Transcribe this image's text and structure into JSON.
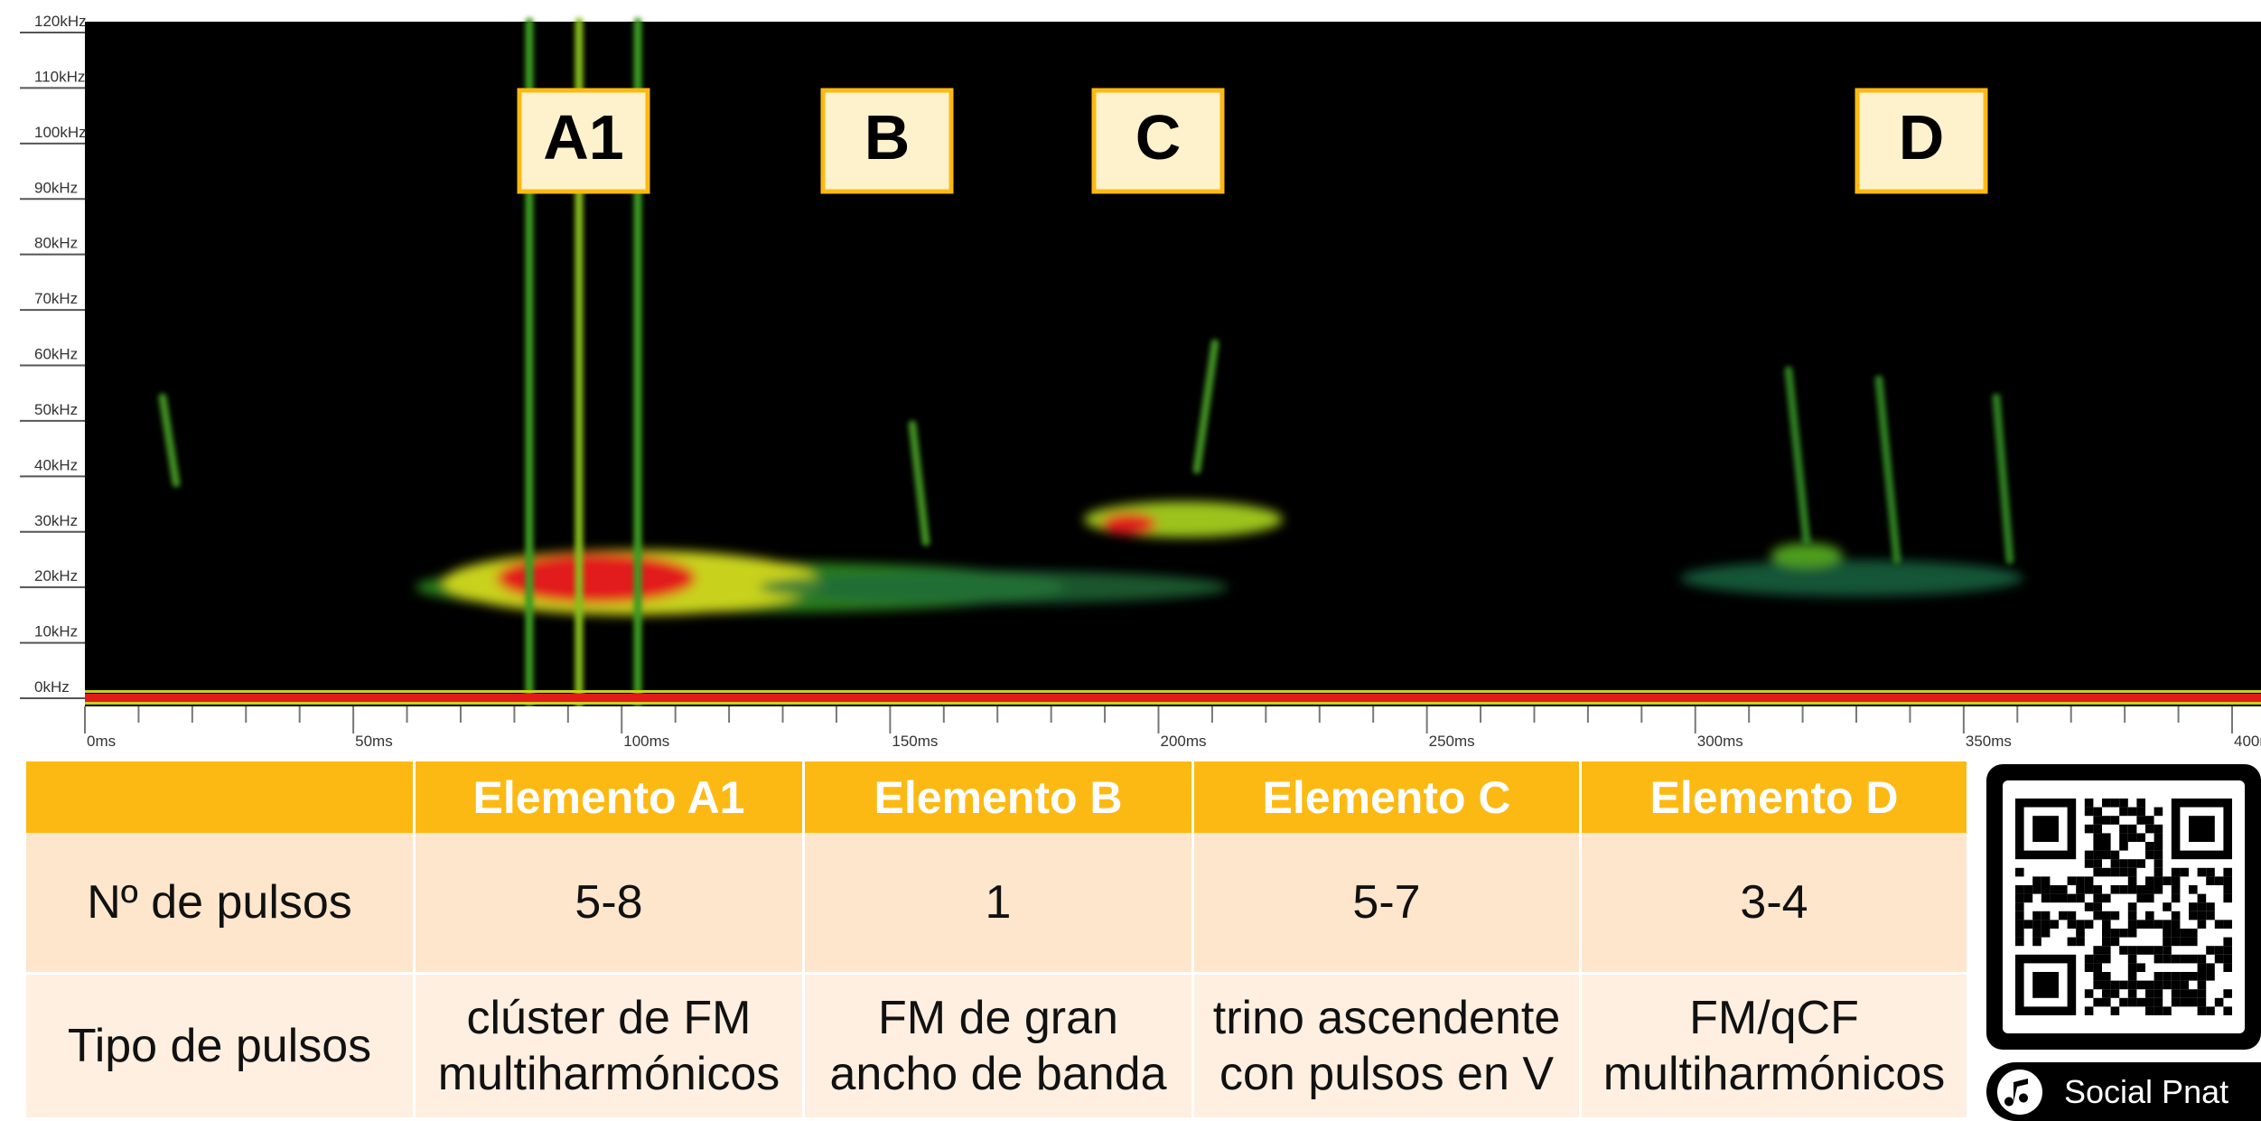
{
  "spectrogram": {
    "yticks": [
      "120kHz",
      "110kHz",
      "100kHz",
      "90kHz",
      "80kHz",
      "70kHz",
      "60kHz",
      "50kHz",
      "40kHz",
      "30kHz",
      "20kHz",
      "10kHz",
      "0kHz"
    ],
    "xticks": [
      "0ms",
      "50ms",
      "100ms",
      "150ms",
      "200ms",
      "250ms",
      "300ms",
      "350ms",
      "400ms"
    ],
    "elements": [
      "A1",
      "B",
      "C",
      "D"
    ]
  },
  "table": {
    "columns": [
      "Elemento A1",
      "Elemento B",
      "Elemento C",
      "Elemento D"
    ],
    "rows": [
      {
        "label": "Nº de pulsos",
        "cells": [
          [
            "5-8"
          ],
          [
            "1"
          ],
          [
            "5-7"
          ],
          [
            "3-4"
          ]
        ]
      },
      {
        "label": "Tipo de pulsos",
        "cells": [
          [
            "clúster de FM",
            "multiharmónicos"
          ],
          [
            "FM de gran",
            "ancho de banda"
          ],
          [
            "trino ascendente",
            "con pulsos en V"
          ],
          [
            "FM/qCF",
            "multiharmónicos"
          ]
        ]
      }
    ]
  },
  "badge": "Social Pnat"
}
